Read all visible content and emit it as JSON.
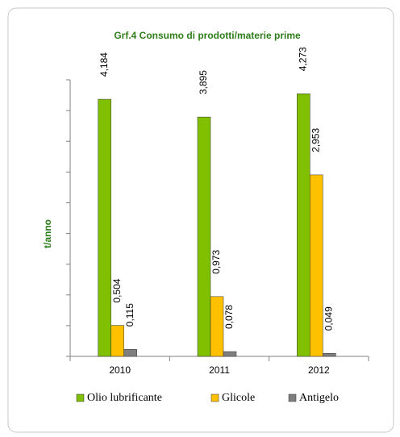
{
  "chart_data": {
    "type": "bar",
    "title": "Grf.4 Consumo di prodotti/materie  prime",
    "y_label": "t/anno",
    "categories": [
      "2010",
      "2011",
      "2012"
    ],
    "series": [
      {
        "name": "Olio lubrificante",
        "color": "#80c000",
        "values": [
          4.184,
          3.895,
          4.273
        ],
        "value_labels": [
          "4,184",
          "3,895",
          "4,273"
        ]
      },
      {
        "name": "Glicole",
        "color": "#ffc000",
        "values": [
          0.504,
          0.973,
          2.953
        ],
        "value_labels": [
          "0,504",
          "0,973",
          "2,953"
        ]
      },
      {
        "name": "Antigelo",
        "color": "#7f7f7f",
        "values": [
          0.115,
          0.078,
          0.049
        ],
        "value_labels": [
          "0,115",
          "0,078",
          "0,049"
        ]
      }
    ],
    "ylim": [
      0,
      4.5
    ],
    "yticks": [
      0,
      0.5,
      1,
      1.5,
      2,
      2.5,
      3,
      3.5,
      4,
      4.5
    ],
    "legend": "bottom"
  }
}
